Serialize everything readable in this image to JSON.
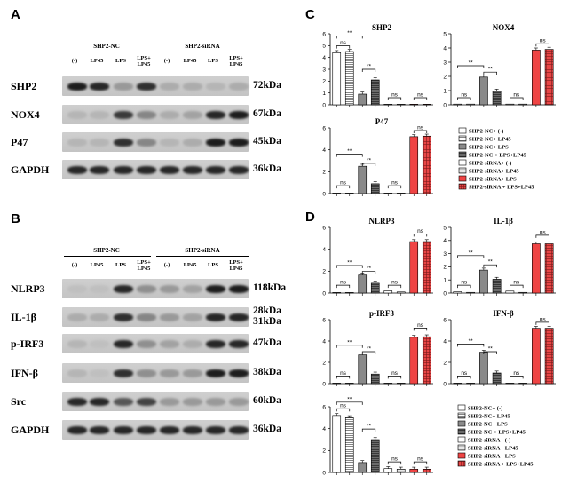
{
  "panels": {
    "A": {
      "letter": "A",
      "groups": [
        "SHP2-NC",
        "SHP2-siRNA"
      ],
      "lanes": [
        "(-)",
        "LP45",
        "LPS",
        "LPS+\nLP45",
        "(-)",
        "LP45",
        "LPS",
        "LPS+\nLP45"
      ],
      "rows": [
        {
          "protein": "SHP2",
          "kda": "72kDa",
          "intensity": [
            0.9,
            0.85,
            0.25,
            0.8,
            0.15,
            0.15,
            0.1,
            0.15
          ]
        },
        {
          "protein": "NOX4",
          "kda": "67kDa",
          "intensity": [
            0.1,
            0.1,
            0.75,
            0.35,
            0.15,
            0.2,
            0.85,
            0.9
          ]
        },
        {
          "protein": "P47",
          "kda": "45kDa",
          "intensity": [
            0.1,
            0.1,
            0.8,
            0.35,
            0.1,
            0.15,
            0.9,
            0.9
          ]
        },
        {
          "protein": "GAPDH",
          "kda": "36kDa",
          "intensity": [
            0.85,
            0.85,
            0.85,
            0.85,
            0.85,
            0.85,
            0.85,
            0.85
          ]
        }
      ]
    },
    "B": {
      "letter": "B",
      "groups": [
        "SHP2-NC",
        "SHP2-siRNA"
      ],
      "lanes": [
        "(-)",
        "LP45",
        "LPS",
        "LPS+\nLP45",
        "(-)",
        "LP45",
        "LPS",
        "LPS+\nLP45"
      ],
      "rows": [
        {
          "protein": "NLRP3",
          "kda": "118kDa",
          "intensity": [
            0.05,
            0.05,
            0.85,
            0.3,
            0.25,
            0.2,
            0.9,
            0.9
          ]
        },
        {
          "protein": "IL-1β",
          "kda": "28kDa\n31kDa",
          "intensity": [
            0.15,
            0.15,
            0.8,
            0.35,
            0.25,
            0.2,
            0.85,
            0.85
          ]
        },
        {
          "protein": "p-IRF3",
          "kda": "47kDa",
          "intensity": [
            0.1,
            0.05,
            0.85,
            0.3,
            0.2,
            0.15,
            0.85,
            0.85
          ]
        },
        {
          "protein": "IFN-β",
          "kda": "38kDa",
          "intensity": [
            0.1,
            0.05,
            0.8,
            0.3,
            0.25,
            0.25,
            0.9,
            0.9
          ]
        },
        {
          "protein": "Src",
          "kda": "60kDa",
          "intensity": [
            0.85,
            0.85,
            0.6,
            0.7,
            0.25,
            0.25,
            0.25,
            0.25
          ]
        },
        {
          "protein": "GAPDH",
          "kda": "36kDa",
          "intensity": [
            0.85,
            0.85,
            0.85,
            0.85,
            0.85,
            0.85,
            0.85,
            0.85
          ]
        }
      ]
    },
    "C": {
      "letter": "C"
    },
    "D": {
      "letter": "D"
    }
  },
  "legend_entries": [
    "SHP2-NC+ (-)",
    "SHP2-NC+ LP45",
    "SHP2-NC+ LPS",
    "SHP2-NC + LPS+LP45",
    "SHP2-siRNA+ (-)",
    "SHP2-siRNA+ LP45",
    "SHP2-siRNA+ LPS",
    "SHP2-siRNA + LPS+LP45"
  ],
  "legend_styles": [
    {
      "fill": "#ffffff",
      "pattern": "none"
    },
    {
      "fill": "#ffffff",
      "pattern": "hlines"
    },
    {
      "fill": "#8c8c8c",
      "pattern": "none"
    },
    {
      "fill": "#555555",
      "pattern": "hlines"
    },
    {
      "fill": "#ffffff",
      "pattern": "none"
    },
    {
      "fill": "#dddddd",
      "pattern": "hlines"
    },
    {
      "fill": "#f04a4a",
      "pattern": "none"
    },
    {
      "fill": "#d63a3a",
      "pattern": "grid"
    }
  ],
  "chart_data": [
    {
      "type": "bar",
      "panel": "C",
      "title": "SHP2",
      "ylim": [
        0,
        6
      ],
      "yticks": [
        0,
        1,
        2,
        3,
        4,
        5,
        6
      ],
      "values": [
        4.4,
        4.5,
        0.9,
        2.1,
        0.05,
        0.05,
        0.05,
        0.05
      ],
      "brackets": [
        {
          "a": 0,
          "b": 1,
          "label": "ns",
          "level": 0.83
        },
        {
          "a": 0,
          "b": 2,
          "label": "**",
          "level": 0.97
        },
        {
          "a": 2,
          "b": 3,
          "label": "**",
          "level": 0.5
        },
        {
          "a": 4,
          "b": 5,
          "label": "ns",
          "level": 0.1
        },
        {
          "a": 6,
          "b": 7,
          "label": "ns",
          "level": 0.1
        }
      ]
    },
    {
      "type": "bar",
      "panel": "C",
      "title": "NOX4",
      "ylim": [
        0,
        5
      ],
      "yticks": [
        0,
        1,
        2,
        3,
        4,
        5
      ],
      "values": [
        0.05,
        0.05,
        1.95,
        0.95,
        0.05,
        0.05,
        3.85,
        3.9
      ],
      "brackets": [
        {
          "a": 0,
          "b": 1,
          "label": "ns",
          "level": 0.1
        },
        {
          "a": 0,
          "b": 2,
          "label": "**",
          "level": 0.55
        },
        {
          "a": 2,
          "b": 3,
          "label": "**",
          "level": 0.46
        },
        {
          "a": 4,
          "b": 5,
          "label": "ns",
          "level": 0.1
        },
        {
          "a": 6,
          "b": 7,
          "label": "ns",
          "level": 0.86
        }
      ]
    },
    {
      "type": "bar",
      "panel": "C",
      "title": "P47",
      "ylim": [
        0,
        6
      ],
      "yticks": [
        0,
        2,
        4,
        6
      ],
      "values": [
        0.05,
        0.05,
        2.5,
        0.9,
        0.05,
        0.05,
        5.2,
        5.25
      ],
      "brackets": [
        {
          "a": 0,
          "b": 1,
          "label": "ns",
          "level": 0.12
        },
        {
          "a": 0,
          "b": 2,
          "label": "**",
          "level": 0.6
        },
        {
          "a": 2,
          "b": 3,
          "label": "**",
          "level": 0.46
        },
        {
          "a": 4,
          "b": 5,
          "label": "ns",
          "level": 0.12
        },
        {
          "a": 6,
          "b": 7,
          "label": "ns",
          "level": 0.96
        }
      ]
    },
    {
      "type": "bar",
      "panel": "D",
      "title": "NLRP3",
      "ylim": [
        0,
        6
      ],
      "yticks": [
        0,
        2,
        4,
        6
      ],
      "values": [
        0.05,
        0.05,
        1.65,
        0.9,
        0.2,
        0.1,
        4.7,
        4.7
      ],
      "brackets": [
        {
          "a": 0,
          "b": 1,
          "label": "ns",
          "level": 0.12
        },
        {
          "a": 0,
          "b": 2,
          "label": "**",
          "level": 0.42
        },
        {
          "a": 2,
          "b": 3,
          "label": "**",
          "level": 0.33
        },
        {
          "a": 4,
          "b": 5,
          "label": "ns",
          "level": 0.12
        },
        {
          "a": 6,
          "b": 7,
          "label": "ns",
          "level": 0.9
        }
      ]
    },
    {
      "type": "bar",
      "panel": "D",
      "title": "IL-1β",
      "ylim": [
        0,
        5
      ],
      "yticks": [
        0,
        1,
        2,
        3,
        4,
        5
      ],
      "values": [
        0.1,
        0.05,
        1.75,
        1.05,
        0.15,
        0.05,
        3.75,
        3.75
      ],
      "brackets": [
        {
          "a": 0,
          "b": 1,
          "label": "ns",
          "level": 0.12
        },
        {
          "a": 0,
          "b": 2,
          "label": "**",
          "level": 0.57
        },
        {
          "a": 2,
          "b": 3,
          "label": "**",
          "level": 0.43
        },
        {
          "a": 4,
          "b": 5,
          "label": "ns",
          "level": 0.12
        },
        {
          "a": 6,
          "b": 7,
          "label": "ns",
          "level": 0.88
        }
      ]
    },
    {
      "type": "bar",
      "panel": "D",
      "title": "p-IRF3",
      "ylim": [
        0,
        6
      ],
      "yticks": [
        0,
        2,
        4,
        6
      ],
      "values": [
        0.05,
        0.05,
        2.7,
        0.9,
        0.05,
        0.05,
        4.35,
        4.4
      ],
      "brackets": [
        {
          "a": 0,
          "b": 1,
          "label": "ns",
          "level": 0.12
        },
        {
          "a": 0,
          "b": 2,
          "label": "**",
          "level": 0.6
        },
        {
          "a": 2,
          "b": 3,
          "label": "**",
          "level": 0.5
        },
        {
          "a": 4,
          "b": 5,
          "label": "ns",
          "level": 0.12
        },
        {
          "a": 6,
          "b": 7,
          "label": "ns",
          "level": 0.87
        }
      ]
    },
    {
      "type": "bar",
      "panel": "D",
      "title": "IFN-β",
      "ylim": [
        0,
        6
      ],
      "yticks": [
        0,
        2,
        4,
        6
      ],
      "values": [
        0.05,
        0.05,
        2.95,
        1.0,
        0.05,
        0.05,
        5.2,
        5.2
      ],
      "brackets": [
        {
          "a": 0,
          "b": 1,
          "label": "ns",
          "level": 0.12
        },
        {
          "a": 0,
          "b": 2,
          "label": "**",
          "level": 0.62
        },
        {
          "a": 2,
          "b": 3,
          "label": "**",
          "level": 0.5
        },
        {
          "a": 4,
          "b": 5,
          "label": "ns",
          "level": 0.12
        },
        {
          "a": 6,
          "b": 7,
          "label": "ns",
          "level": 0.96
        }
      ]
    },
    {
      "type": "bar",
      "panel": "D",
      "title": "",
      "ylim": [
        0,
        6
      ],
      "yticks": [
        0,
        2,
        4,
        6
      ],
      "values": [
        5.2,
        5.0,
        0.9,
        3.0,
        0.35,
        0.3,
        0.3,
        0.3
      ],
      "brackets": [
        {
          "a": 0,
          "b": 1,
          "label": "ns",
          "level": 0.97
        },
        {
          "a": 0,
          "b": 2,
          "label": "**",
          "level": 1.07
        },
        {
          "a": 2,
          "b": 3,
          "label": "**",
          "level": 0.66
        },
        {
          "a": 4,
          "b": 5,
          "label": "ns",
          "level": 0.16
        },
        {
          "a": 6,
          "b": 7,
          "label": "ns",
          "level": 0.16
        }
      ]
    }
  ]
}
